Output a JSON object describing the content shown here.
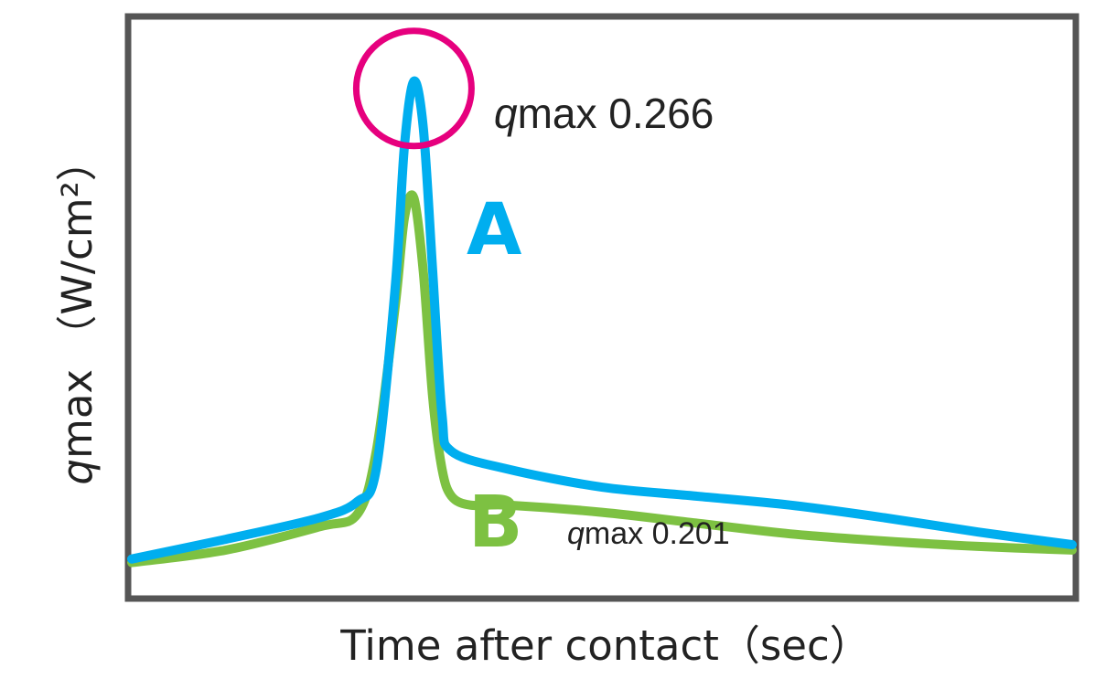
{
  "chart_data": {
    "type": "line",
    "xlabel": "Time after contact（sec）",
    "ylabel_q": "q",
    "ylabel_rest": "max （W/cm²）",
    "series": [
      {
        "name": "A",
        "color": "#00aeef",
        "qmax": 0.266,
        "x": [
          0,
          10,
          20,
          24,
          26,
          28,
          29,
          30,
          31,
          32,
          33,
          34,
          40,
          50,
          60,
          70,
          80,
          90,
          100
        ],
        "y": [
          0.0,
          0.011,
          0.023,
          0.032,
          0.05,
          0.15,
          0.23,
          0.266,
          0.24,
          0.16,
          0.08,
          0.06,
          0.05,
          0.04,
          0.035,
          0.03,
          0.023,
          0.015,
          0.008
        ]
      },
      {
        "name": "B",
        "color": "#7dc142",
        "qmax": 0.201,
        "x": [
          0,
          10,
          20,
          24,
          26,
          28,
          29,
          30,
          31,
          32,
          33,
          34,
          36,
          40,
          50,
          60,
          70,
          80,
          90,
          100
        ],
        "y": [
          -0.002,
          0.005,
          0.018,
          0.025,
          0.06,
          0.14,
          0.19,
          0.201,
          0.16,
          0.09,
          0.05,
          0.035,
          0.03,
          0.03,
          0.026,
          0.02,
          0.014,
          0.01,
          0.007,
          0.005
        ]
      }
    ],
    "annotations": [
      {
        "series": "A",
        "q_symbol": "q",
        "label": "max 0.266",
        "value": 0.266
      },
      {
        "series": "B",
        "q_symbol": "q",
        "label": "max 0.201",
        "value": 0.201
      }
    ],
    "xlim": [
      0,
      100
    ],
    "ylim": [
      -0.02,
      0.3
    ],
    "grid": false,
    "ticks": false,
    "highlight_color": "#e6007e"
  }
}
